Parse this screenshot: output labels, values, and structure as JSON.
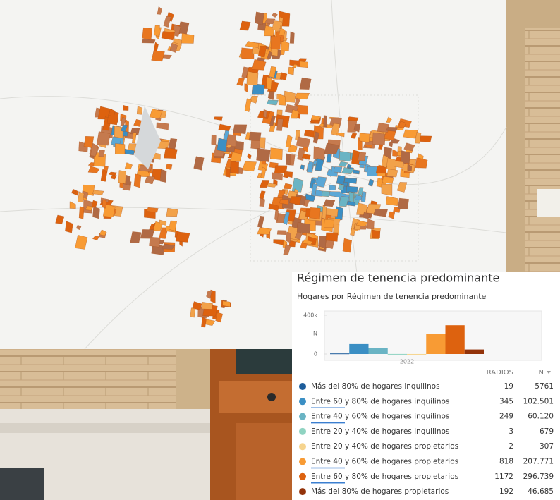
{
  "panel": {
    "title": "Régimen de tenencia predominante",
    "subtitle": "Hogares por Régimen de tenencia predominante"
  },
  "chart_data": {
    "type": "bar",
    "y_label": "N",
    "x_label": "2022",
    "categories": [
      "Más del 80% de hogares inquilinos",
      "Entre 60 y 80% de hogares inquilinos",
      "Entre 40 y 60% de hogares inquilinos",
      "Entre 20 y 40% de hogares inquilinos",
      "Entre 20 y 40% de hogares propietarios",
      "Entre 40 y 60% de hogares propietarios",
      "Entre 60 y 80% de hogares propietarios",
      "Más del 80% de hogares propietarios"
    ],
    "values": [
      5761,
      102501,
      60120,
      679,
      307,
      207771,
      296739,
      46685
    ],
    "value_labels": [
      "5761",
      "102.501",
      "60.120",
      "679",
      "307",
      "207.771",
      "296.739",
      "46.685"
    ],
    "colors": [
      "#1d5d9b",
      "#3b8fc4",
      "#6ab4c4",
      "#8fd3c1",
      "#f6d48e",
      "#f89b34",
      "#dd620f",
      "#93330a"
    ],
    "ylim": [
      0,
      400000
    ],
    "yticks": [
      0,
      {
        "value": 400000,
        "label": "400k"
      }
    ]
  },
  "table": {
    "headers": [
      "RADIOS",
      "N"
    ],
    "radios": [
      19,
      345,
      249,
      3,
      2,
      818,
      1172,
      192
    ]
  }
}
